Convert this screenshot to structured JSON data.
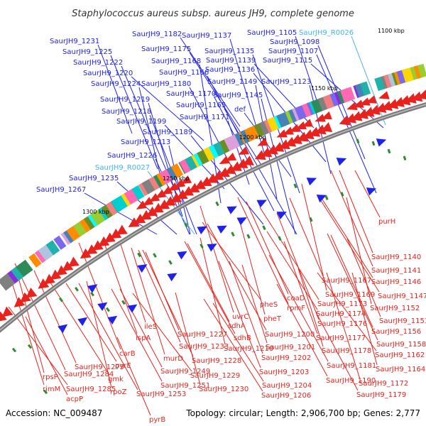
{
  "title": "Staphylococcus aureus subsp. aureus JH9, complete genome",
  "accession": "Accession: NC_009487",
  "summary": "Topology: circular; Length: 2,906,700 bp; Genes: 2,777",
  "colors": {
    "forward_gene": "#1f22e8",
    "reverse_gene": "#e8231d",
    "rna_gene": "#42b6e6",
    "backbone": "#7a7a7a",
    "tick": "#2e8b2e"
  },
  "kbp_ticks": [
    "1100 kbp",
    "1150 kbp",
    "1200 kbp",
    "1250 kbp",
    "1300 kbp"
  ],
  "forward_labels": [
    "SaurJH9_1105",
    "SaurJH9_R0026",
    "SaurJH9_1098",
    "SaurJH9_1107",
    "SaurJH9_1115",
    "SaurJH9_1123",
    "SaurJH9_1137",
    "SaurJH9_1135",
    "SaurJH9_1139",
    "SaurJH9_1136",
    "SaurJH9_1149",
    "SaurJH9_1145",
    "def",
    "SaurJH9_1182",
    "SaurJH9_1175",
    "SaurJH9_1168",
    "SaurJH9_1166",
    "SaurJH9_1180",
    "SaurJH9_1170",
    "SaurJH9_1165",
    "SaurJH9_1171",
    "SaurJH9_1231",
    "SaurJH9_1225",
    "SaurJH9_1222",
    "SaurJH9_1220",
    "SaurJH9_1224",
    "SaurJH9_1219",
    "SaurJH9_1218",
    "SaurJH9_1199",
    "SaurJH9_1189",
    "SaurJH9_1213",
    "SaurJH9_1226",
    "SaurJH9_R0027",
    "SaurJH9_1235",
    "SaurJH9_1267"
  ],
  "reverse_labels": [
    "purH",
    "SaurJH9_1140",
    "SaurJH9_1141",
    "SaurJH9_1146",
    "SaurJH9_1147",
    "SaurJH9_1152",
    "SaurJH9_1153",
    "SaurJH9_1156",
    "SaurJH9_1158",
    "SaurJH9_1162",
    "SaurJH9_1164",
    "SaurJH9_1172",
    "SaurJH9_1179",
    "SaurJH9_1190",
    "SaurJH9_1181",
    "SaurJH9_1178",
    "SaurJH9_1177",
    "SaurJH9_1176",
    "SaurJH9_1174",
    "SaurJH9_1173",
    "SaurJH9_1169",
    "SaurJH9_1167",
    "coaD",
    "rpmF",
    "pheS",
    "pheT",
    "uvrC",
    "sdhA",
    "sdhB",
    "SaurJH9_1200",
    "SaurJH9_1201",
    "SaurJH9_1202",
    "SaurJH9_1203",
    "SaurJH9_1204",
    "SaurJH9_1206",
    "SaurJH9_1210",
    "SaurJH9_1227",
    "SaurJH9_1233",
    "SaurJH9_1228",
    "SaurJH9_1229",
    "SaurJH9_1230",
    "murD",
    "SaurJH9_1249",
    "SaurJH9_1251",
    "SaurJH9_1253",
    "ileS",
    "ispA",
    "carB",
    "pyrE",
    "gmk",
    "rpoZ",
    "pyrB",
    "SaurJH9_1279",
    "SaurJH9_1284",
    "SaurJH9_1285",
    "rpsP",
    "rimM",
    "acpP"
  ]
}
